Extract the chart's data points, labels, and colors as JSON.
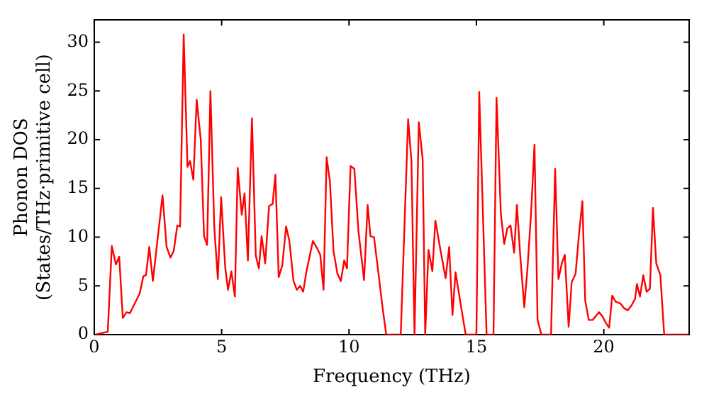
{
  "chart_data": {
    "type": "line",
    "xlabel": "Frequency (THz)",
    "ylabel": "Phonon DOS\n(States/THz·primitive cell)",
    "xlim": [
      0,
      23.35
    ],
    "ylim": [
      0,
      32.3
    ],
    "xticks": [
      0,
      5,
      10,
      15,
      20
    ],
    "yticks": [
      0,
      5,
      10,
      15,
      20,
      25,
      30
    ],
    "grid": false,
    "legend": false,
    "marker": "none",
    "line_style": "solid",
    "series": [
      {
        "color": "#ff0000",
        "x": [
          0.06,
          0.53,
          0.69,
          0.85,
          0.98,
          1.12,
          1.27,
          1.4,
          1.78,
          1.93,
          2.03,
          2.16,
          2.3,
          2.68,
          2.84,
          2.99,
          3.12,
          3.26,
          3.37,
          3.51,
          3.66,
          3.76,
          3.89,
          4.02,
          4.18,
          4.31,
          4.43,
          4.56,
          4.71,
          4.85,
          4.98,
          5.14,
          5.25,
          5.38,
          5.52,
          5.63,
          5.79,
          5.9,
          6.03,
          6.19,
          6.34,
          6.46,
          6.57,
          6.71,
          6.86,
          7.0,
          7.11,
          7.24,
          7.38,
          7.53,
          7.66,
          7.82,
          7.95,
          8.08,
          8.2,
          8.33,
          8.58,
          8.72,
          8.87,
          9.0,
          9.12,
          9.25,
          9.39,
          9.54,
          9.68,
          9.81,
          9.92,
          10.06,
          10.21,
          10.37,
          10.59,
          10.73,
          10.84,
          10.98,
          11.17,
          11.31,
          11.46,
          12.03,
          12.32,
          12.45,
          12.57,
          12.74,
          12.89,
          12.99,
          13.12,
          13.27,
          13.39,
          13.56,
          13.79,
          13.93,
          14.06,
          14.18,
          14.42,
          14.58,
          15.0,
          15.11,
          15.4,
          15.67,
          15.79,
          15.96,
          16.09,
          16.21,
          16.34,
          16.48,
          16.59,
          16.72,
          16.88,
          17.01,
          17.15,
          17.28,
          17.4,
          17.55,
          17.93,
          18.09,
          18.22,
          18.35,
          18.47,
          18.62,
          18.74,
          18.89,
          19.02,
          19.16,
          19.27,
          19.41,
          19.56,
          19.69,
          19.81,
          19.94,
          20.08,
          20.21,
          20.33,
          20.46,
          20.65,
          20.8,
          20.94,
          21.09,
          21.23,
          21.3,
          21.42,
          21.55,
          21.68,
          21.81,
          21.93,
          22.06,
          22.22,
          22.37,
          23.33
        ],
        "values": [
          0,
          0.3,
          9.1,
          7.2,
          8,
          1.7,
          2.3,
          2.2,
          4.2,
          6,
          6.1,
          9,
          5.5,
          14.3,
          9,
          7.9,
          8.6,
          11.2,
          11.1,
          30.8,
          17.2,
          17.8,
          15.9,
          24.1,
          20,
          10.1,
          9.2,
          25,
          11.1,
          5.7,
          14.1,
          6.9,
          4.6,
          6.5,
          3.9,
          17.1,
          12.3,
          14.5,
          7.6,
          22.2,
          8.1,
          6.8,
          10.1,
          7.3,
          13.2,
          13.4,
          16.4,
          5.9,
          7.1,
          11.1,
          9.6,
          5.5,
          4.6,
          5.0,
          4.4,
          6.5,
          9.6,
          9.0,
          8.2,
          4.6,
          18.2,
          15.7,
          8.6,
          6.3,
          5.5,
          7.6,
          6.8,
          17.3,
          17.0,
          10.6,
          5.6,
          13.3,
          10.1,
          10.0,
          6.0,
          2.9,
          0,
          0,
          22.1,
          17.8,
          0,
          21.8,
          18.0,
          0,
          8.7,
          6.5,
          11.7,
          9.1,
          5.8,
          9.0,
          2.0,
          6.4,
          2.5,
          0,
          0,
          24.9,
          0,
          0,
          24.3,
          12.4,
          9.3,
          10.9,
          11.2,
          8.4,
          13.3,
          8.1,
          2.8,
          7.0,
          12.7,
          19.5,
          1.5,
          0,
          0,
          17.0,
          5.7,
          7.3,
          8.2,
          0.8,
          5.4,
          6.2,
          10.1,
          13.7,
          3.5,
          1.5,
          1.5,
          1.9,
          2.3,
          1.9,
          1.2,
          0.7,
          4.0,
          3.4,
          3.2,
          2.7,
          2.5,
          3.0,
          3.7,
          5.2,
          3.9,
          6.1,
          4.4,
          4.7,
          13.0,
          7.3,
          6.1,
          0,
          0
        ]
      }
    ]
  }
}
